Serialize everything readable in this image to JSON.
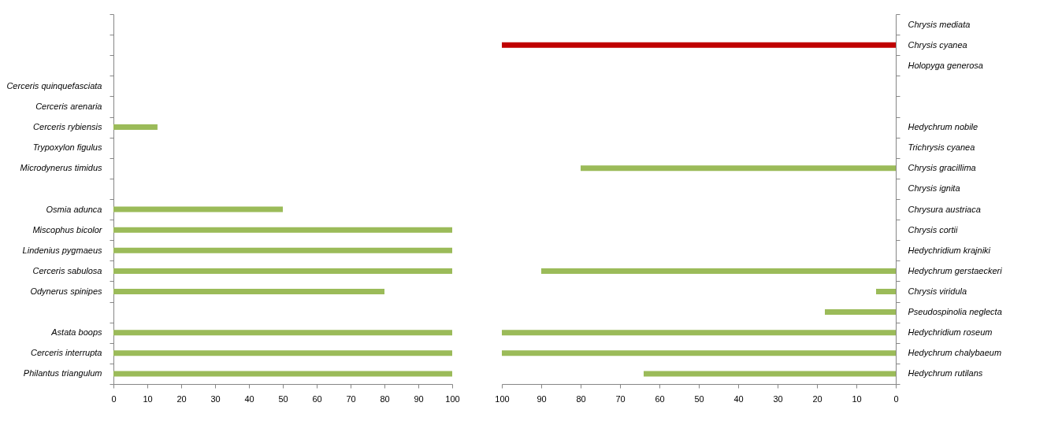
{
  "chart_data": [
    {
      "type": "bar",
      "orientation": "horizontal",
      "categories": [
        null,
        null,
        null,
        "Cerceris  quinquefasciata",
        "Cerceris  arenaria",
        "Cerceris  rybiensis",
        "Trypoxylon figulus",
        "Microdynerus  timidus",
        null,
        "Osmia adunca",
        "Miscophus bicolor",
        "Lindenius pygmaeus",
        "Cerceris  sabulosa",
        "Odynerus spinipes",
        null,
        "Astata boops",
        "Cerceris  interrupta",
        "Philantus triangulum"
      ],
      "values": [
        null,
        null,
        null,
        null,
        null,
        13,
        null,
        null,
        null,
        50,
        100,
        100,
        100,
        80,
        null,
        100,
        100,
        100
      ],
      "colors": [
        "#9bbb59",
        "#9bbb59",
        "#9bbb59",
        "#9bbb59",
        "#9bbb59",
        "#9bbb59",
        "#9bbb59",
        "#9bbb59",
        "#9bbb59",
        "#9bbb59",
        "#9bbb59",
        "#9bbb59",
        "#9bbb59",
        "#9bbb59",
        "#9bbb59",
        "#9bbb59",
        "#9bbb59",
        "#9bbb59"
      ],
      "xlim": [
        0,
        100
      ],
      "xticks": [
        0,
        10,
        20,
        30,
        40,
        50,
        60,
        70,
        80,
        90,
        100
      ]
    },
    {
      "type": "bar",
      "orientation": "horizontal",
      "categories": [
        "Chrysis mediata",
        "Chrysis cyanea",
        "Holopyga generosa",
        null,
        null,
        "Hedychrum nobile",
        "Trichrysis  cyanea",
        "Chrysis gracillima",
        "Chrysis ignita",
        "Chrysura austriaca",
        "Chrysis cortii",
        "Hedychridium krajniki",
        "Hedychrum gerstaeckeri",
        "Chrysis viridula",
        "Pseudospinolia neglecta",
        "Hedychridium roseum",
        "Hedychrum chalybaeum",
        "Hedychrum rutilans"
      ],
      "values": [
        null,
        100,
        null,
        null,
        null,
        null,
        null,
        80,
        null,
        null,
        null,
        null,
        90,
        5,
        18,
        100,
        100,
        64
      ],
      "colors": [
        "#9bbb59",
        "#c00000",
        "#9bbb59",
        "#9bbb59",
        "#9bbb59",
        "#9bbb59",
        "#9bbb59",
        "#9bbb59",
        "#9bbb59",
        "#9bbb59",
        "#9bbb59",
        "#9bbb59",
        "#9bbb59",
        "#9bbb59",
        "#9bbb59",
        "#9bbb59",
        "#9bbb59",
        "#9bbb59"
      ],
      "xlim": [
        100,
        0
      ],
      "xticks": [
        100,
        90,
        80,
        70,
        60,
        50,
        40,
        30,
        20,
        10,
        0
      ]
    }
  ]
}
